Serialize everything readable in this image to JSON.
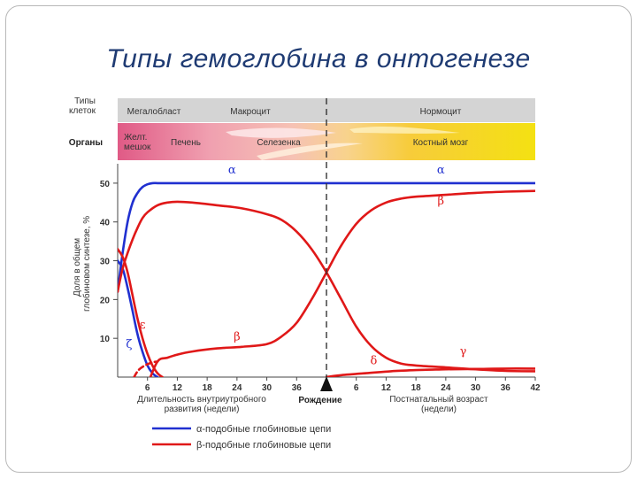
{
  "slide": {
    "title": "Типы гемоглобина в онтогенезе"
  },
  "bands": {
    "cells_label": "Типы клеток",
    "organs_label": "Органы",
    "cells": [
      "Мегалобласт",
      "Макроцит",
      "Нормоцит"
    ],
    "organs": [
      "Желт. мешок",
      "Печень",
      "Селезенка",
      "Костный мозг"
    ]
  },
  "colors": {
    "alpha_like": "#2030d0",
    "beta_like": "#e01818",
    "birth_line": "#333333"
  },
  "chart_data": {
    "type": "line",
    "ylabel": "Доля в общем глобиновом синтезе, %",
    "ylim": [
      0,
      55
    ],
    "yticks": [
      10,
      20,
      30,
      40,
      50
    ],
    "x_domain": [
      0,
      84
    ],
    "birth_at": 42,
    "xticks": [
      {
        "pos": 6,
        "label": "6"
      },
      {
        "pos": 12,
        "label": "12"
      },
      {
        "pos": 18,
        "label": "18"
      },
      {
        "pos": 24,
        "label": "24"
      },
      {
        "pos": 30,
        "label": "30"
      },
      {
        "pos": 36,
        "label": "36"
      },
      {
        "pos": 48,
        "label": "6"
      },
      {
        "pos": 54,
        "label": "12"
      },
      {
        "pos": 60,
        "label": "18"
      },
      {
        "pos": 66,
        "label": "24"
      },
      {
        "pos": 72,
        "label": "30"
      },
      {
        "pos": 78,
        "label": "36"
      },
      {
        "pos": 84,
        "label": "42"
      }
    ],
    "xlabel_prenatal": "Длительность внутриутробного развития (недели)",
    "xlabel_birth": "Рождение",
    "xlabel_postnatal": "Постнатальный возраст (недели)",
    "series": [
      {
        "name": "α",
        "family": "alpha",
        "style": "solid",
        "x": [
          0,
          1,
          2,
          3,
          4,
          5,
          6,
          7,
          8,
          9,
          10,
          12,
          20,
          42,
          60,
          84
        ],
        "y": [
          22,
          32,
          40,
          45,
          47.5,
          49,
          49.7,
          50,
          50,
          50,
          50,
          50,
          50,
          50,
          50,
          50
        ]
      },
      {
        "name": "ζ",
        "family": "alpha",
        "style": "solid",
        "x": [
          0,
          1,
          2,
          3,
          4,
          5,
          6,
          7,
          8
        ],
        "y": [
          30,
          28,
          23,
          17,
          11,
          6.5,
          3,
          1,
          0
        ]
      },
      {
        "name": "ε",
        "family": "beta",
        "style": "solid",
        "x": [
          0,
          1,
          2,
          3,
          4,
          5,
          6,
          7,
          8,
          9
        ],
        "y": [
          33,
          31,
          27,
          21,
          15,
          10,
          6,
          3,
          1,
          0
        ]
      },
      {
        "name": "γ",
        "family": "beta",
        "style": "solid",
        "x": [
          0,
          1,
          2,
          3,
          4,
          5,
          6,
          8,
          10,
          12,
          15,
          20,
          25,
          30,
          33,
          36,
          39,
          42,
          45,
          48,
          51,
          54,
          57,
          60,
          66,
          72,
          78,
          84
        ],
        "y": [
          22,
          28,
          32,
          35.5,
          38.5,
          41,
          42.5,
          44.3,
          45,
          45.2,
          45,
          44.3,
          43.5,
          42,
          40.5,
          37.5,
          33,
          27,
          20,
          13,
          8,
          5,
          3.5,
          3,
          2.5,
          2,
          1.6,
          1.5
        ]
      },
      {
        "name": "β",
        "family": "beta",
        "style": "solid",
        "x": [
          6,
          8,
          10,
          12,
          15,
          20,
          25,
          30,
          33,
          36,
          39,
          42,
          45,
          48,
          51,
          54,
          57,
          60,
          66,
          72,
          78,
          84
        ],
        "y": [
          -2,
          4,
          5,
          5.8,
          6.6,
          7.4,
          7.8,
          8.5,
          10.5,
          14,
          20,
          27,
          34,
          39.5,
          43,
          45,
          46,
          46.5,
          47,
          47.5,
          47.8,
          48
        ]
      },
      {
        "name": "β (early)",
        "family": "beta",
        "style": "dashed",
        "x": [
          2.5,
          4,
          5.5,
          7,
          8
        ],
        "y": [
          -2,
          1.5,
          3,
          3.8,
          4
        ]
      },
      {
        "name": "δ",
        "family": "beta",
        "style": "solid",
        "x": [
          42,
          45,
          50,
          55,
          60,
          66,
          72,
          78,
          84
        ],
        "y": [
          0,
          0.5,
          1,
          1.5,
          1.8,
          2,
          2.1,
          2.2,
          2.2
        ]
      }
    ],
    "labels": [
      {
        "text": "α",
        "x": 23,
        "y": 52.5,
        "family": "alpha"
      },
      {
        "text": "α",
        "x": 65,
        "y": 52.5,
        "family": "alpha"
      },
      {
        "text": "β",
        "x": 65,
        "y": 44.5,
        "family": "beta"
      },
      {
        "text": "β",
        "x": 24,
        "y": 9.5,
        "family": "beta"
      },
      {
        "text": "ε",
        "x": 5,
        "y": 12.5,
        "family": "beta"
      },
      {
        "text": "ζ",
        "x": 2.3,
        "y": 7.5,
        "family": "alpha"
      },
      {
        "text": "δ",
        "x": 51.5,
        "y": 3.3,
        "family": "beta"
      },
      {
        "text": "γ",
        "x": 69.5,
        "y": 5.7,
        "family": "beta"
      }
    ],
    "legend": [
      {
        "text": "α-подобные глобиновые цепи",
        "family": "alpha"
      },
      {
        "text": "β-подобные глобиновые цепи",
        "family": "beta"
      }
    ]
  }
}
